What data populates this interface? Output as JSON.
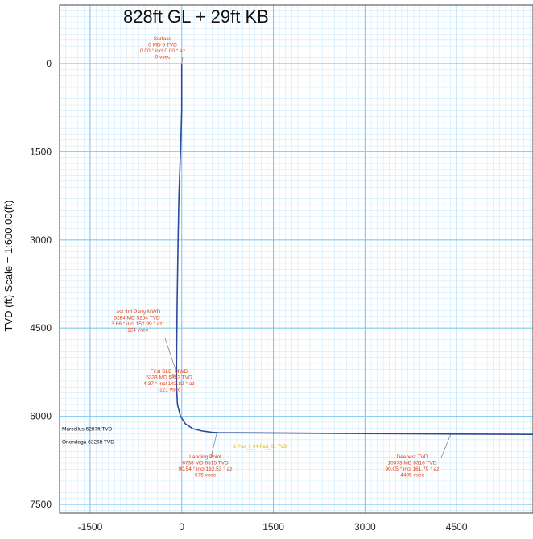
{
  "chart_data": {
    "type": "line",
    "title": "828ft GL + 29ft KB",
    "ylabel": "TVD (ft) Scale = 1:600.00(ft)",
    "xlabel": "",
    "xlim": [
      -2000,
      5750
    ],
    "ylim": [
      7650,
      -1000
    ],
    "x_ticks": [
      -1500,
      0,
      1500,
      3000,
      4500
    ],
    "y_ticks": [
      0,
      1500,
      3000,
      4500,
      6000,
      7500
    ],
    "grid": true,
    "series": [
      {
        "x": [
          0,
          0,
          -20,
          -45,
          -60,
          -75,
          -80,
          -85,
          -85,
          -70,
          -20,
          60,
          180,
          330,
          500,
          600,
          1500,
          3000,
          4550,
          5750
        ],
        "y": [
          0,
          800,
          1500,
          2200,
          3000,
          4000,
          4500,
          5100,
          5500,
          5800,
          6000,
          6130,
          6210,
          6250,
          6275,
          6280,
          6285,
          6295,
          6304,
          6310
        ]
      }
    ],
    "annotations": [
      {
        "text": [
          "Surface",
          "0 MD 0 TVD",
          "0.00 ° incl 0.00 ° az",
          "0 vsec"
        ],
        "x": 0,
        "y": 0
      },
      {
        "text": [
          "Last 3rd Party MWD",
          "5284 MD 5254 TVD",
          "3.66 ° incl 152.99 ° az",
          "-124 vsec"
        ],
        "x": -85,
        "y": 5254
      },
      {
        "text": [
          "First SLB_MWD",
          "5333 MD 5303 TVD",
          "4.37 ° incl 142.82 ° az",
          "-121 vsec"
        ],
        "x": -85,
        "y": 5303
      },
      {
        "text": [
          "Landing Point",
          "6738 MD 6315 TVD",
          "90.54 ° incl 162.53 ° az",
          "575 vsec"
        ],
        "x": 575,
        "y": 6280
      },
      {
        "text": [
          "Deepest TVD",
          "10573 MD 6316 TVD",
          "90.05 ° incl 161.79 ° az",
          "4405 vsec"
        ],
        "x": 4405,
        "y": 6303
      }
    ],
    "formations": [
      {
        "name": "Marcellus 6287ft TVD",
        "y": 6287
      },
      {
        "name": "Onondaga 6326ft TVD",
        "y": 6326
      }
    ],
    "segment_label": "1 Pad_I_04 Pad_01 TVD",
    "colors": {
      "grid_major": "#7fc8f0",
      "grid_minor": "#cdeafb",
      "well": "#2a4a9a",
      "annotation": "#e0401a",
      "segment": "#d9c21a"
    }
  }
}
